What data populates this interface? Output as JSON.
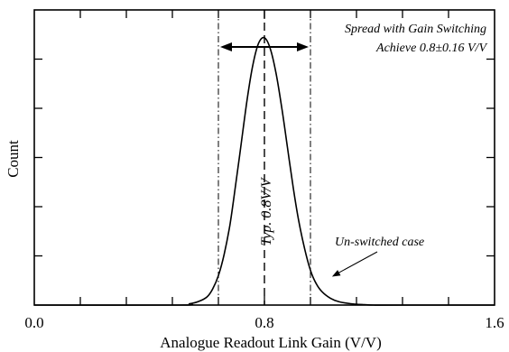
{
  "chart_data": {
    "type": "line",
    "xlabel": "Analogue Readout Link Gain (V/V)",
    "ylabel": "Count",
    "xlim": [
      0.0,
      1.6
    ],
    "ylim": [
      0,
      1.05
    ],
    "x_ticks_labeled": [
      "0.0",
      "0.8",
      "1.6"
    ],
    "x_tick_values": [
      0.0,
      0.8,
      1.6
    ],
    "grid": false,
    "series": [
      {
        "x": [
          0.5,
          0.54,
          0.57,
          0.6,
          0.62,
          0.64,
          0.66,
          0.68,
          0.7,
          0.72,
          0.74,
          0.76,
          0.78,
          0.8,
          0.82,
          0.84,
          0.86,
          0.88,
          0.9,
          0.92,
          0.94,
          0.96,
          0.98,
          1.0,
          1.03,
          1.06,
          1.1,
          1.14,
          1.18
        ],
        "y": [
          0.0,
          0.005,
          0.013,
          0.03,
          0.06,
          0.11,
          0.19,
          0.3,
          0.45,
          0.61,
          0.77,
          0.9,
          0.98,
          1.0,
          0.96,
          0.87,
          0.74,
          0.59,
          0.44,
          0.31,
          0.21,
          0.13,
          0.08,
          0.05,
          0.025,
          0.012,
          0.005,
          0.002,
          0.0
        ]
      }
    ],
    "reference_lines": [
      {
        "x": 0.64,
        "style": "dash-dot"
      },
      {
        "x": 0.8,
        "style": "dashed"
      },
      {
        "x": 0.96,
        "style": "dash-dot"
      }
    ],
    "annotations": {
      "spread_line1": "Spread with Gain Switching",
      "spread_line2": "Achieve 0.8±0.16 V/V",
      "typical": "Typ. 0.8V/V",
      "unswitched": "Un-switched case"
    },
    "spread_range": [
      0.64,
      0.96
    ],
    "unswitched_arrow_target": {
      "x": 1.035,
      "y": 0.14
    }
  }
}
